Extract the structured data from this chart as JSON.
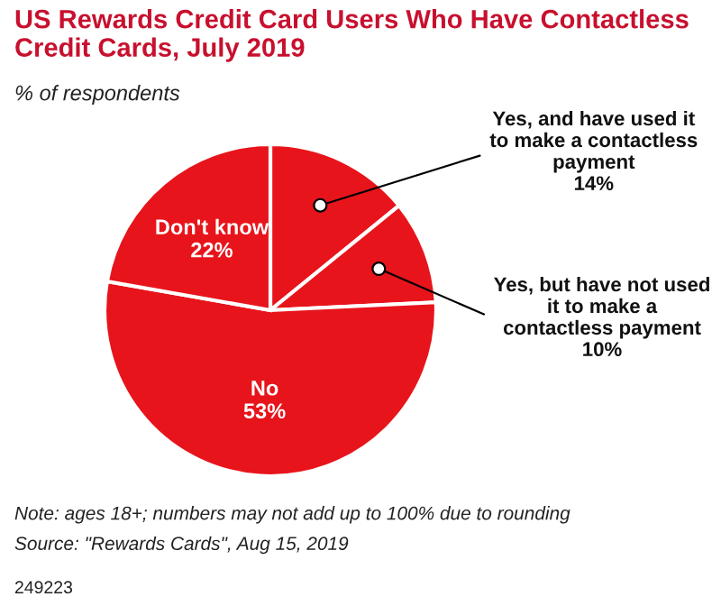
{
  "chart_data": {
    "type": "pie",
    "title": "US Rewards Credit Card Users Who Have Contactless Credit Cards, July 2019",
    "subtitle": "% of respondents",
    "categories": [
      "Yes, and have used it to make a contactless payment",
      "Yes, but have not used it to make a contactless payment",
      "No",
      "Don't know"
    ],
    "values": [
      14,
      10,
      53,
      22
    ],
    "value_labels": [
      "14%",
      "10%",
      "53%",
      "22%"
    ],
    "colors": [
      "#e8141b",
      "#e8141b",
      "#e8141b",
      "#e8141b"
    ],
    "annotations": [
      "Note: ages 18+; numbers may not add up to 100% due to rounding",
      "Source: \"Rewards Cards\", Aug 15, 2019",
      "249223"
    ]
  }
}
